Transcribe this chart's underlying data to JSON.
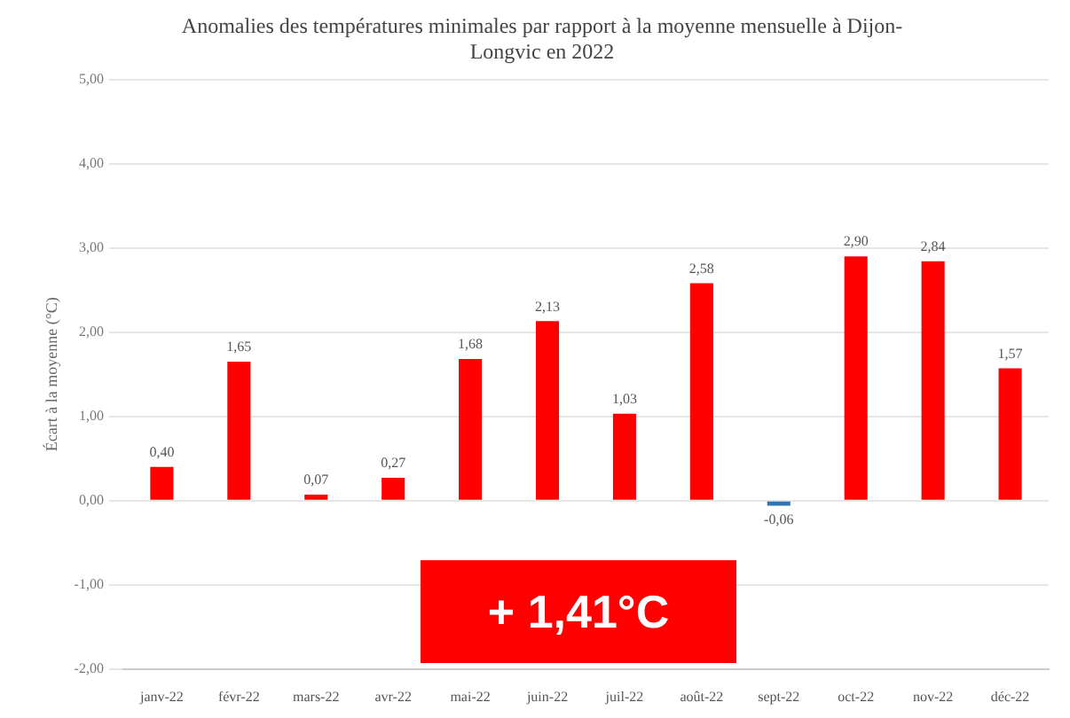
{
  "chart_data": {
    "type": "bar",
    "title": [
      "Anomalies des températures minimales par rapport à la moyenne mensuelle à Dijon-",
      "Longvic en 2022"
    ],
    "ylabel": "Écart à la moyenne (°C)",
    "categories": [
      "janv-22",
      "févr-22",
      "mars-22",
      "avr-22",
      "mai-22",
      "juin-22",
      "juil-22",
      "août-22",
      "sept-22",
      "oct-22",
      "nov-22",
      "déc-22"
    ],
    "values": [
      0.4,
      1.65,
      0.07,
      0.27,
      1.68,
      2.13,
      1.03,
      2.58,
      -0.06,
      2.9,
      2.84,
      1.57
    ],
    "value_labels": [
      "0,40",
      "1,65",
      "0,07",
      "0,27",
      "1,68",
      "2,13",
      "1,03",
      "2,58",
      "-0,06",
      "2,90",
      "2,84",
      "1,57"
    ],
    "colors": [
      "#ff0000",
      "#ff0000",
      "#ff0000",
      "#ff0000",
      "#ff0000",
      "#ff0000",
      "#ff0000",
      "#ff0000",
      "#2e75b6",
      "#ff0000",
      "#ff0000",
      "#ff0000"
    ],
    "ylim": [
      -2,
      5
    ],
    "yticks": [
      {
        "value": -2,
        "label": "-2,00"
      },
      {
        "value": -1,
        "label": "-1,00"
      },
      {
        "value": 0,
        "label": "0,00"
      },
      {
        "value": 1,
        "label": "1,00"
      },
      {
        "value": 2,
        "label": "2,00"
      },
      {
        "value": 3,
        "label": "3,00"
      },
      {
        "value": 4,
        "label": "4,00"
      },
      {
        "value": 5,
        "label": "5,00"
      }
    ],
    "grid": "y",
    "legend": false,
    "annotations": [
      "+ 1,41°C"
    ]
  }
}
